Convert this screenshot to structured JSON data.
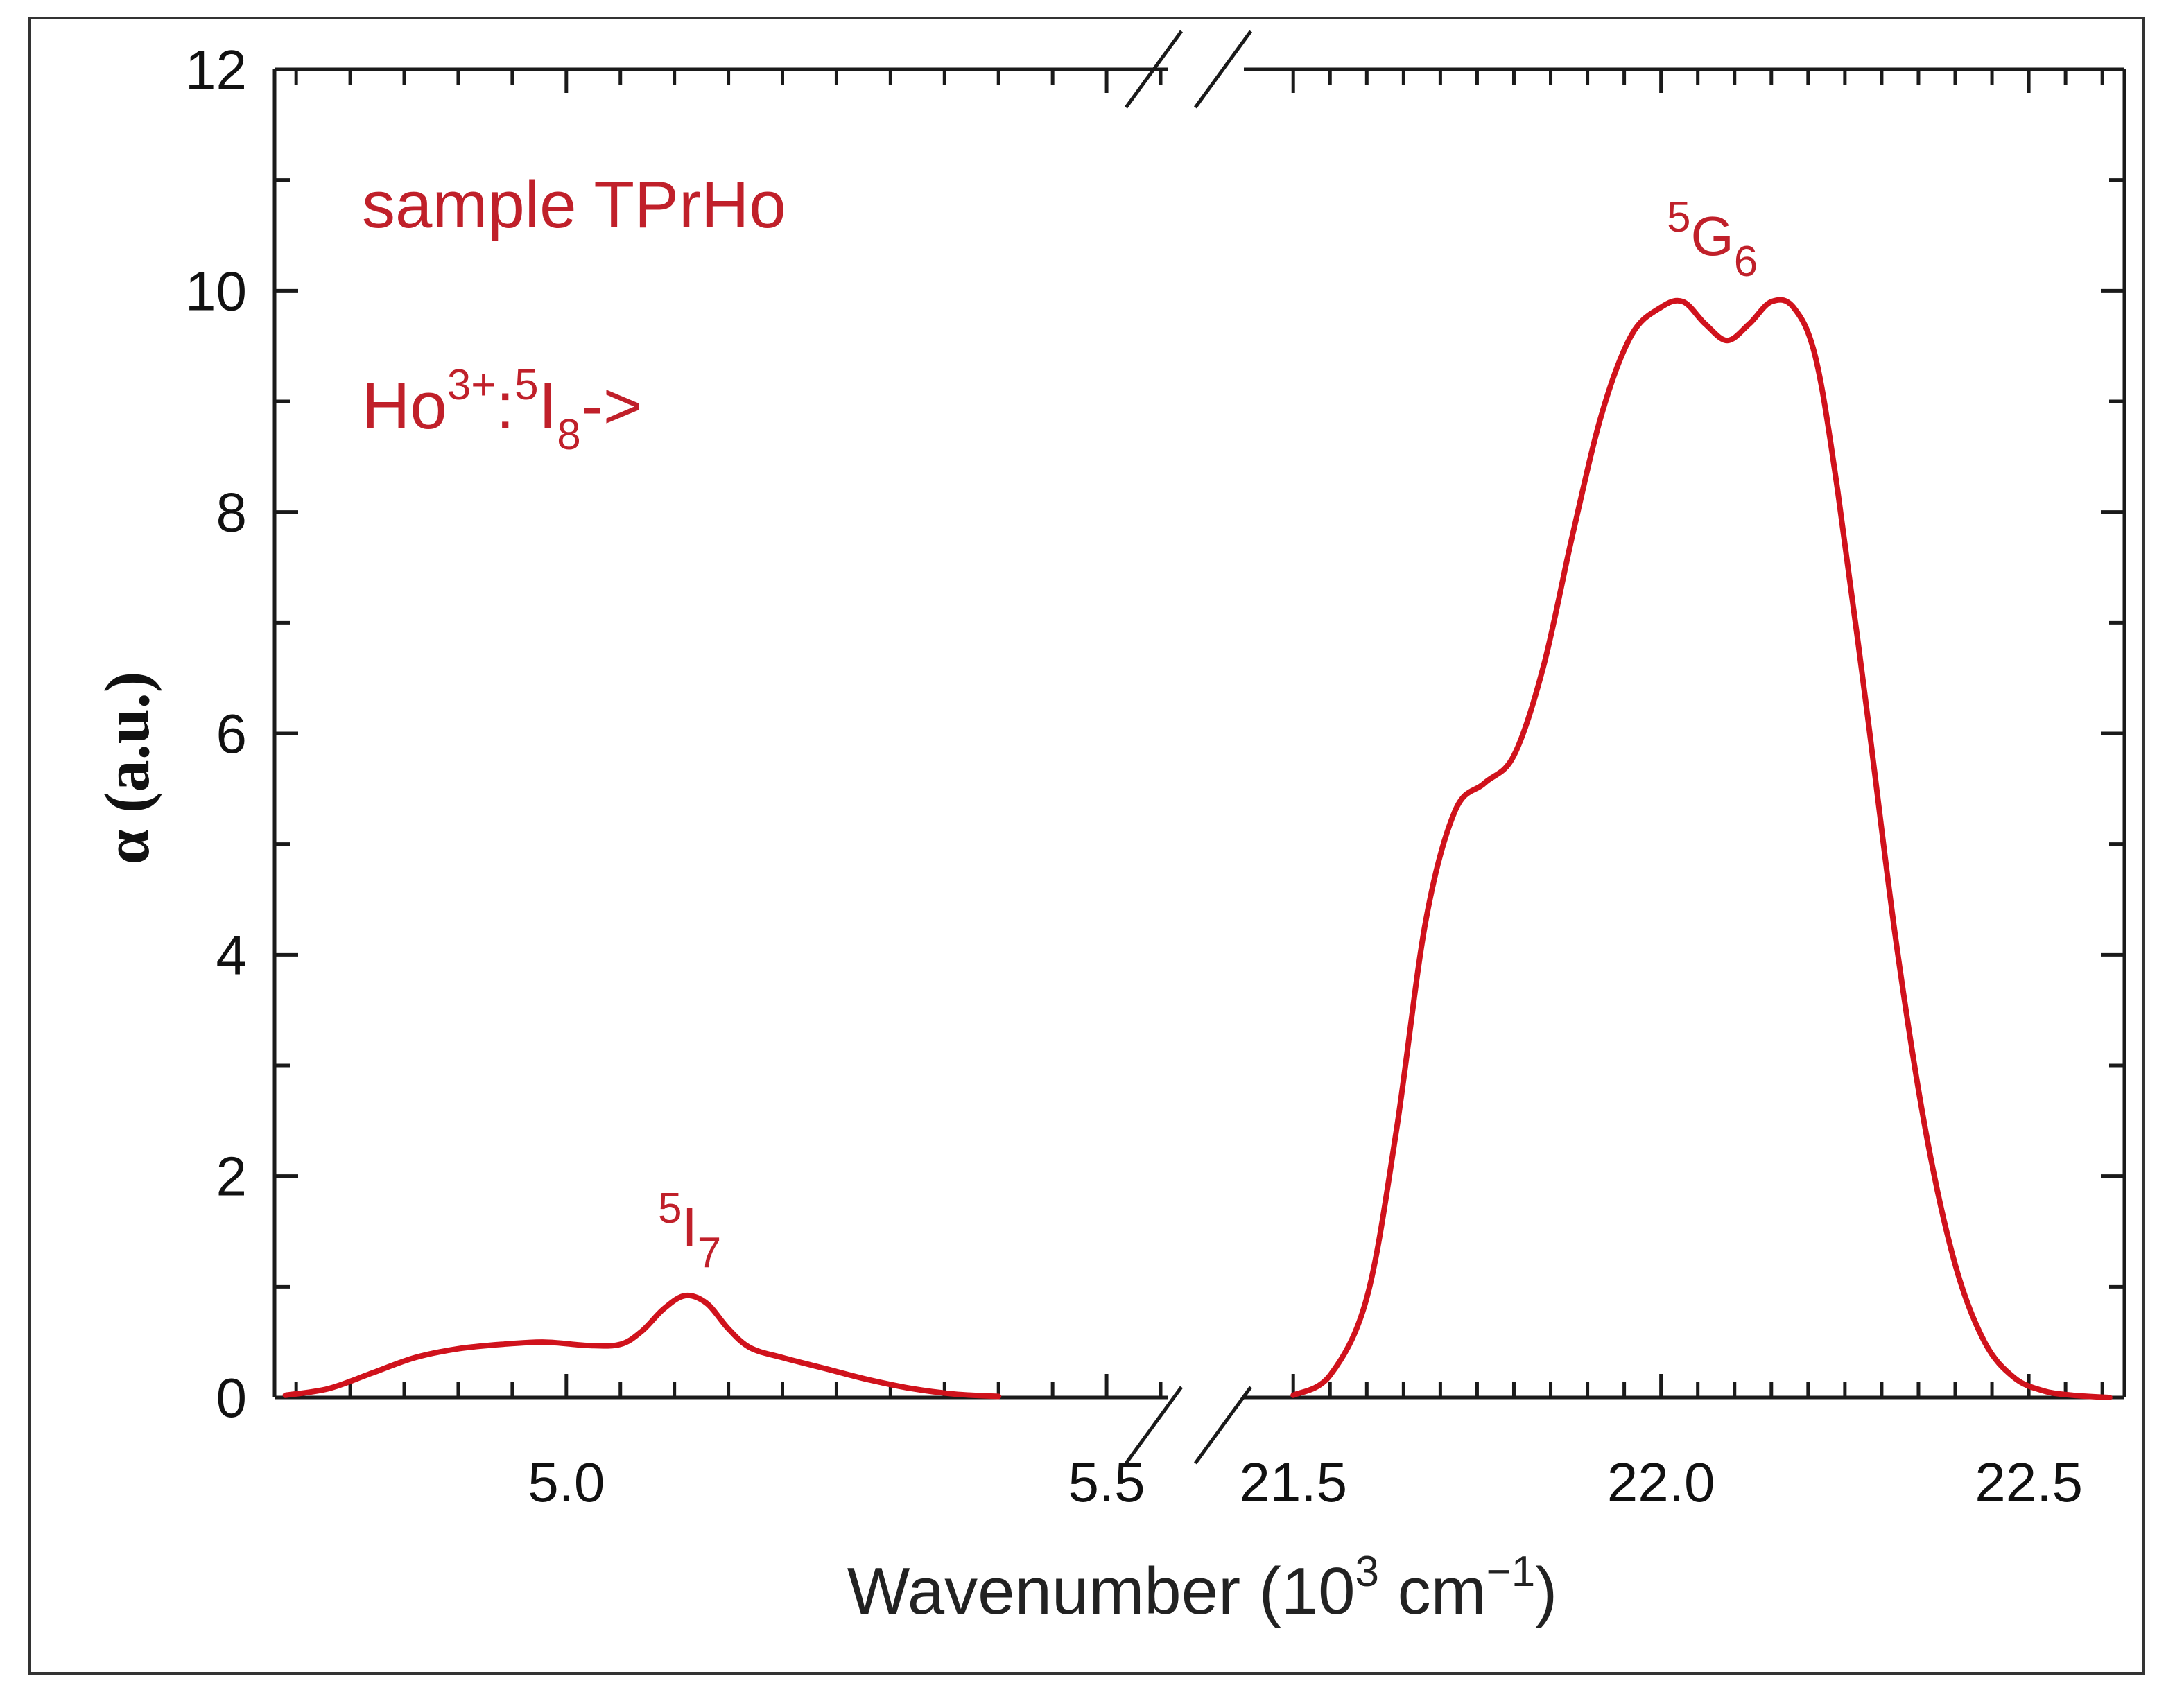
{
  "chart_data": {
    "type": "line",
    "title": "",
    "xlabel": "Wavenumber (10³ cm⁻¹)",
    "xlabel_parts": {
      "base": "Wavenumber (10",
      "exp1": "3",
      "mid": " cm",
      "exp2": "−1",
      "end": ")"
    },
    "ylabel": "α (a.u.)",
    "ylim": [
      0,
      12
    ],
    "y_ticks": [
      0,
      2,
      4,
      6,
      8,
      10,
      12
    ],
    "axis_break": true,
    "segments": [
      {
        "xlim": [
          4.73,
          5.55
        ],
        "x_ticks": [
          "5.0",
          "5.5"
        ],
        "x_tick_values": [
          5.0,
          5.5
        ]
      },
      {
        "xlim": [
          21.48,
          22.63
        ],
        "x_ticks": [
          "21.5",
          "22.0",
          "22.5"
        ],
        "x_tick_values": [
          21.5,
          22.0,
          22.5
        ]
      }
    ],
    "series": [
      {
        "name": "sample TPrHo",
        "color": "#d0121c",
        "segment_1": {
          "x": [
            4.74,
            4.78,
            4.82,
            4.86,
            4.9,
            4.94,
            4.98,
            5.02,
            5.05,
            5.07,
            5.09,
            5.11,
            5.13,
            5.15,
            5.17,
            5.2,
            5.24,
            5.28,
            5.32,
            5.36,
            5.4
          ],
          "y": [
            0.02,
            0.08,
            0.22,
            0.36,
            0.44,
            0.48,
            0.5,
            0.47,
            0.48,
            0.6,
            0.8,
            0.92,
            0.85,
            0.62,
            0.45,
            0.36,
            0.26,
            0.16,
            0.08,
            0.03,
            0.01
          ]
        },
        "segment_2": {
          "x": [
            21.5,
            21.55,
            21.6,
            21.64,
            21.68,
            21.72,
            21.76,
            21.8,
            21.84,
            21.88,
            21.92,
            21.96,
            22.0,
            22.03,
            22.06,
            22.09,
            22.12,
            22.15,
            22.18,
            22.21,
            22.24,
            22.28,
            22.32,
            22.36,
            22.4,
            22.44,
            22.48,
            22.52,
            22.56,
            22.61
          ],
          "y": [
            0.02,
            0.2,
            0.9,
            2.4,
            4.3,
            5.3,
            5.55,
            5.8,
            6.6,
            7.8,
            8.9,
            9.6,
            9.85,
            9.9,
            9.7,
            9.55,
            9.7,
            9.9,
            9.85,
            9.4,
            8.2,
            6.2,
            4.1,
            2.4,
            1.2,
            0.5,
            0.18,
            0.06,
            0.02,
            0.0
          ]
        }
      }
    ],
    "annotations": {
      "sample": "sample TPrHo",
      "transition_base": "Ho",
      "transition_sup1": "3+",
      "transition_colon": ":",
      "transition_sup2": "5",
      "transition_I": "I",
      "transition_sub": "8",
      "transition_arrow": "->",
      "peak1_sup": "5",
      "peak1_base": "I",
      "peak1_sub": "7",
      "peak2_sup": "5",
      "peak2_base": "G",
      "peak2_sub": "6"
    }
  }
}
